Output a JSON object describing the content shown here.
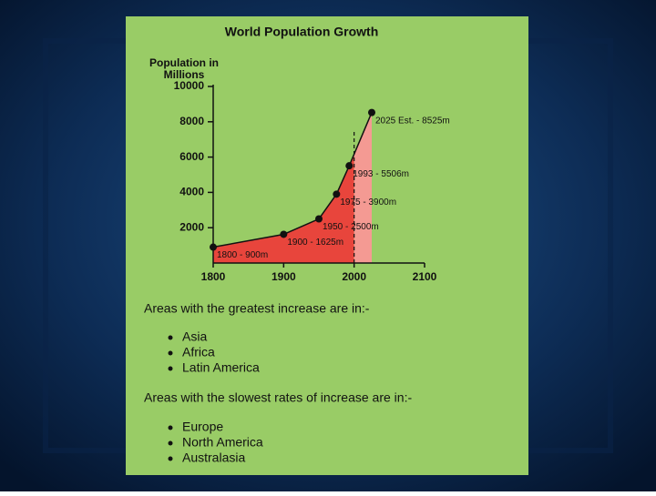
{
  "chart_data": {
    "type": "area",
    "title": "World Population Growth",
    "y_label": "Population in Millions",
    "x": [
      1800,
      1900,
      1950,
      1975,
      1993,
      2025
    ],
    "values": [
      900,
      1625,
      2500,
      3900,
      5506,
      8525
    ],
    "value_labels": [
      "1800 - 900m",
      "1900 - 1625m",
      "1950 - 2500m",
      "1975 - 3900m",
      "1993 - 5506m",
      "2025 Est. - 8525m"
    ],
    "color": "#e8453c",
    "projection_color": "#f49a93",
    "projection_from": 2000,
    "xlim": [
      1800,
      2100
    ],
    "xticks": [
      1800,
      1900,
      2000,
      2100
    ],
    "ylim": [
      0,
      10000
    ],
    "yticks": [
      2000,
      4000,
      6000,
      8000,
      10000
    ]
  },
  "text": {
    "heading_1": "Areas with the greatest increase are in:-",
    "list_1": [
      "Asia",
      "Africa",
      "Latin America"
    ],
    "heading_2": "Areas with the slowest rates of increase are in:-",
    "list_2": [
      "Europe",
      "North America",
      "Australasia"
    ]
  }
}
